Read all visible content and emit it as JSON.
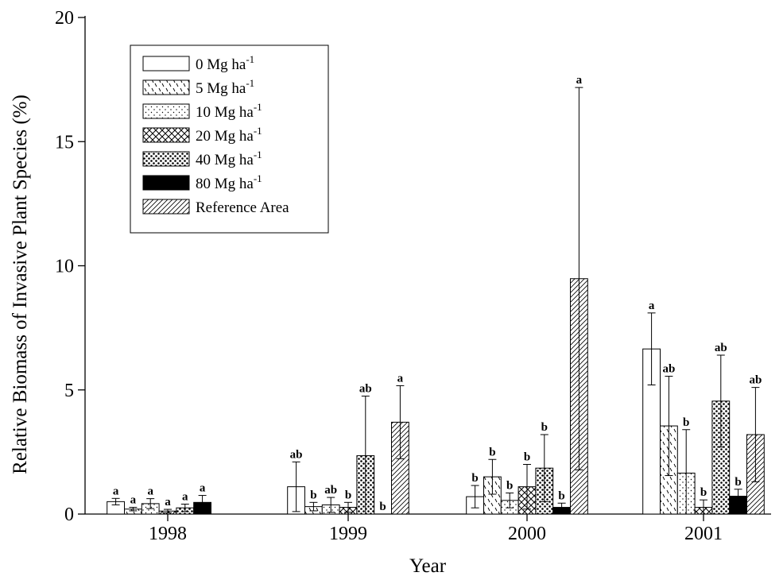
{
  "chart_data": {
    "type": "bar",
    "title": "",
    "xlabel": "Year",
    "ylabel": "Relative Biomass of Invasive Plant Species (%)",
    "ylim": [
      0,
      20
    ],
    "yticks": [
      0,
      5,
      10,
      15,
      20
    ],
    "grid": false,
    "legend_position": "top-left",
    "categories": [
      "1998",
      "1999",
      "2000",
      "2001"
    ],
    "series": [
      {
        "name": "0 Mg ha-1",
        "pattern": "none",
        "color": "#ffffff",
        "values": [
          0.5,
          1.1,
          0.7,
          6.65
        ],
        "errors": [
          0.13,
          1.0,
          0.45,
          1.45
        ],
        "labels": [
          "a",
          "ab",
          "b",
          "a"
        ]
      },
      {
        "name": "5 Mg ha-1",
        "pattern": "dashes",
        "color": "#ffffff",
        "values": [
          0.2,
          0.3,
          1.5,
          3.55
        ],
        "errors": [
          0.07,
          0.17,
          0.7,
          2.0
        ],
        "labels": [
          "a",
          "b",
          "b",
          "ab"
        ]
      },
      {
        "name": "10 Mg ha-1",
        "pattern": "dots-sparse",
        "color": "#ffffff",
        "values": [
          0.42,
          0.37,
          0.55,
          1.65
        ],
        "errors": [
          0.2,
          0.3,
          0.3,
          1.75
        ],
        "labels": [
          "a",
          "ab",
          "b",
          "b"
        ]
      },
      {
        "name": "20 Mg ha-1",
        "pattern": "crosshatch",
        "color": "#ffffff",
        "values": [
          0.12,
          0.27,
          1.1,
          0.27
        ],
        "errors": [
          0.07,
          0.2,
          0.9,
          0.3
        ],
        "labels": [
          "a",
          "b",
          "b",
          "b"
        ]
      },
      {
        "name": "40 Mg ha-1",
        "pattern": "dots-dense",
        "color": "#ffffff",
        "values": [
          0.25,
          2.35,
          1.85,
          4.55
        ],
        "errors": [
          0.15,
          2.4,
          1.35,
          1.85
        ],
        "labels": [
          "a",
          "ab",
          "b",
          "ab"
        ]
      },
      {
        "name": "80 Mg ha-1",
        "pattern": "solid",
        "color": "#000000",
        "values": [
          0.47,
          0.0,
          0.27,
          0.72
        ],
        "errors": [
          0.28,
          0.0,
          0.17,
          0.28
        ],
        "labels": [
          "a",
          "b",
          "b",
          "b"
        ]
      },
      {
        "name": "Reference Area",
        "pattern": "diagonal",
        "color": "#ffffff",
        "values": [
          null,
          3.7,
          9.48,
          3.2
        ],
        "errors": [
          null,
          1.47,
          7.7,
          1.9
        ],
        "labels": [
          null,
          "a",
          "a",
          "ab"
        ]
      }
    ]
  }
}
